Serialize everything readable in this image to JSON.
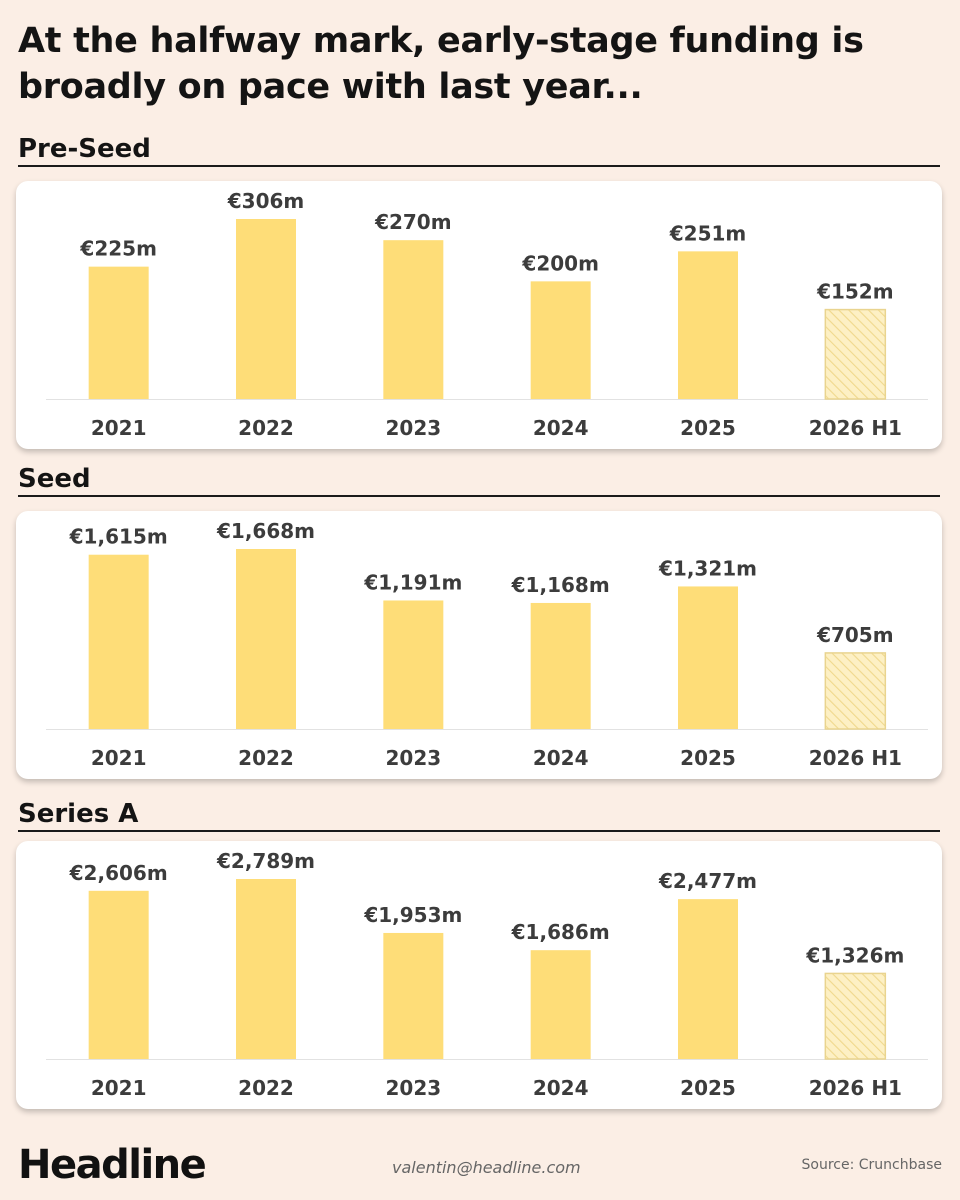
{
  "title": "At the halfway mark, early-stage funding is broadly on pace with last year...",
  "footer": {
    "logo": "Headline",
    "email": "valentin@headline.com",
    "source": "Source: Crunchbase"
  },
  "colors": {
    "bar": "#fedd78",
    "bar_hatched": "#fdf0c4",
    "background": "#fbeee5"
  },
  "chart_data": [
    {
      "type": "bar",
      "title": "Pre-Seed",
      "categories": [
        "2021",
        "2022",
        "2023",
        "2024",
        "2025",
        "2026 H1"
      ],
      "values": [
        225,
        306,
        270,
        200,
        251,
        152
      ],
      "labels": [
        "€225m",
        "€306m",
        "€270m",
        "€200m",
        "€251m",
        "€152m"
      ],
      "partial_period": "2026 H1",
      "unit": "€m"
    },
    {
      "type": "bar",
      "title": "Seed",
      "categories": [
        "2021",
        "2022",
        "2023",
        "2024",
        "2025",
        "2026 H1"
      ],
      "values": [
        1615,
        1668,
        1191,
        1168,
        1321,
        705
      ],
      "labels": [
        "€1,615m",
        "€1,668m",
        "€1,191m",
        "€1,168m",
        "€1,321m",
        "€705m"
      ],
      "partial_period": "2026 H1",
      "unit": "€m"
    },
    {
      "type": "bar",
      "title": "Series A",
      "categories": [
        "2021",
        "2022",
        "2023",
        "2024",
        "2025",
        "2026 H1"
      ],
      "values": [
        2606,
        2789,
        1953,
        1686,
        2477,
        1326
      ],
      "labels": [
        "€2,606m",
        "€2,789m",
        "€1,953m",
        "€1,686m",
        "€2,477m",
        "€1,326m"
      ],
      "partial_period": "2026 H1",
      "unit": "€m"
    }
  ]
}
